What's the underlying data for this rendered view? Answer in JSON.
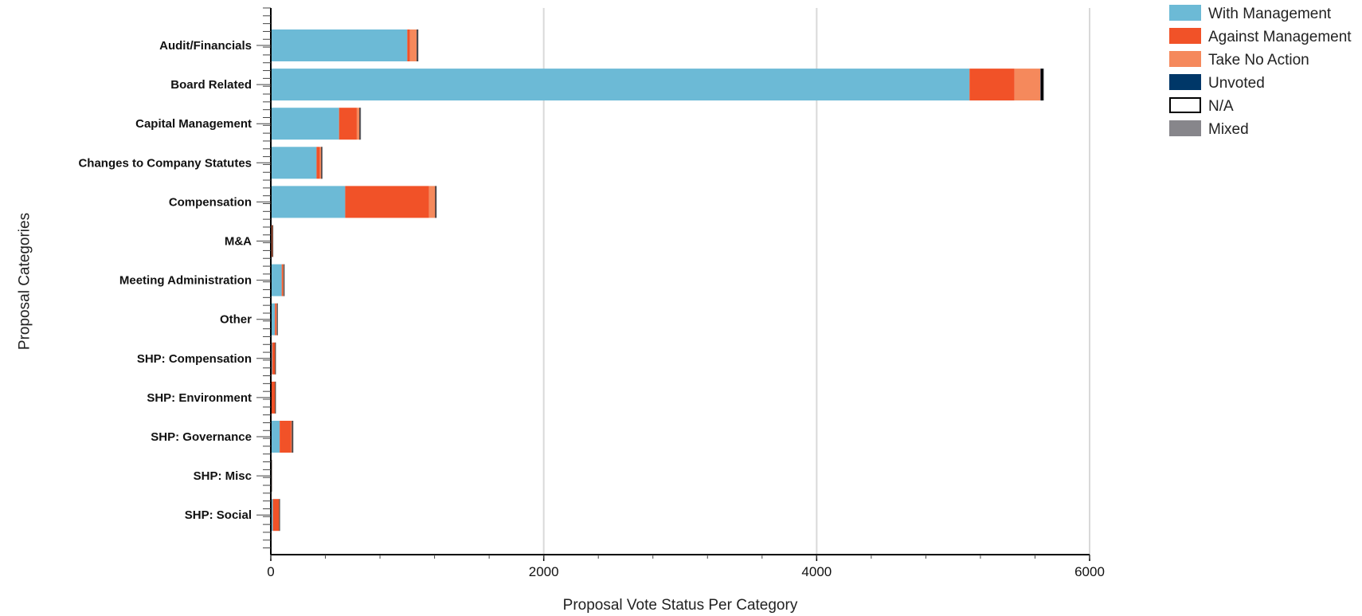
{
  "chart_data": {
    "type": "bar",
    "orientation": "horizontal",
    "stacked": true,
    "xlabel": "Proposal Vote Status Per Category",
    "ylabel": "Proposal Categories",
    "xlim": [
      0,
      6000
    ],
    "xticks": [
      0,
      2000,
      4000,
      6000
    ],
    "grid": true,
    "legend_position": "top-right",
    "categories": [
      "Audit/Financials",
      "Board Related",
      "Capital Management",
      "Changes to Company Statutes",
      "Compensation",
      "M&A",
      "Meeting Administration",
      "Other",
      "SHP: Compensation",
      "SHP: Environment",
      "SHP: Governance",
      "SHP: Misc",
      "SHP: Social"
    ],
    "series": [
      {
        "name": "With Management",
        "color": "#6cbad6",
        "values": [
          1000,
          5120,
          500,
          335,
          545,
          5,
          80,
          30,
          10,
          5,
          65,
          2,
          15
        ]
      },
      {
        "name": "Against Management",
        "color": "#f15228",
        "values": [
          20,
          330,
          130,
          25,
          615,
          5,
          8,
          10,
          20,
          25,
          85,
          1,
          45
        ]
      },
      {
        "name": "Take No Action",
        "color": "#f5895c",
        "values": [
          50,
          190,
          20,
          10,
          45,
          2,
          5,
          5,
          2,
          2,
          5,
          0,
          2
        ]
      },
      {
        "name": "Unvoted",
        "color": "#003768",
        "values": [
          2,
          3,
          1,
          1,
          1,
          0,
          0,
          0,
          0,
          0,
          1,
          0,
          0
        ]
      },
      {
        "name": "N/A",
        "color": "#000000",
        "values": [
          5,
          18,
          5,
          4,
          5,
          3,
          4,
          3,
          3,
          4,
          5,
          1,
          3
        ]
      },
      {
        "name": "Mixed",
        "color": "#87868b",
        "values": [
          2,
          2,
          1,
          1,
          1,
          0,
          1,
          1,
          0,
          0,
          1,
          0,
          0
        ]
      }
    ]
  }
}
